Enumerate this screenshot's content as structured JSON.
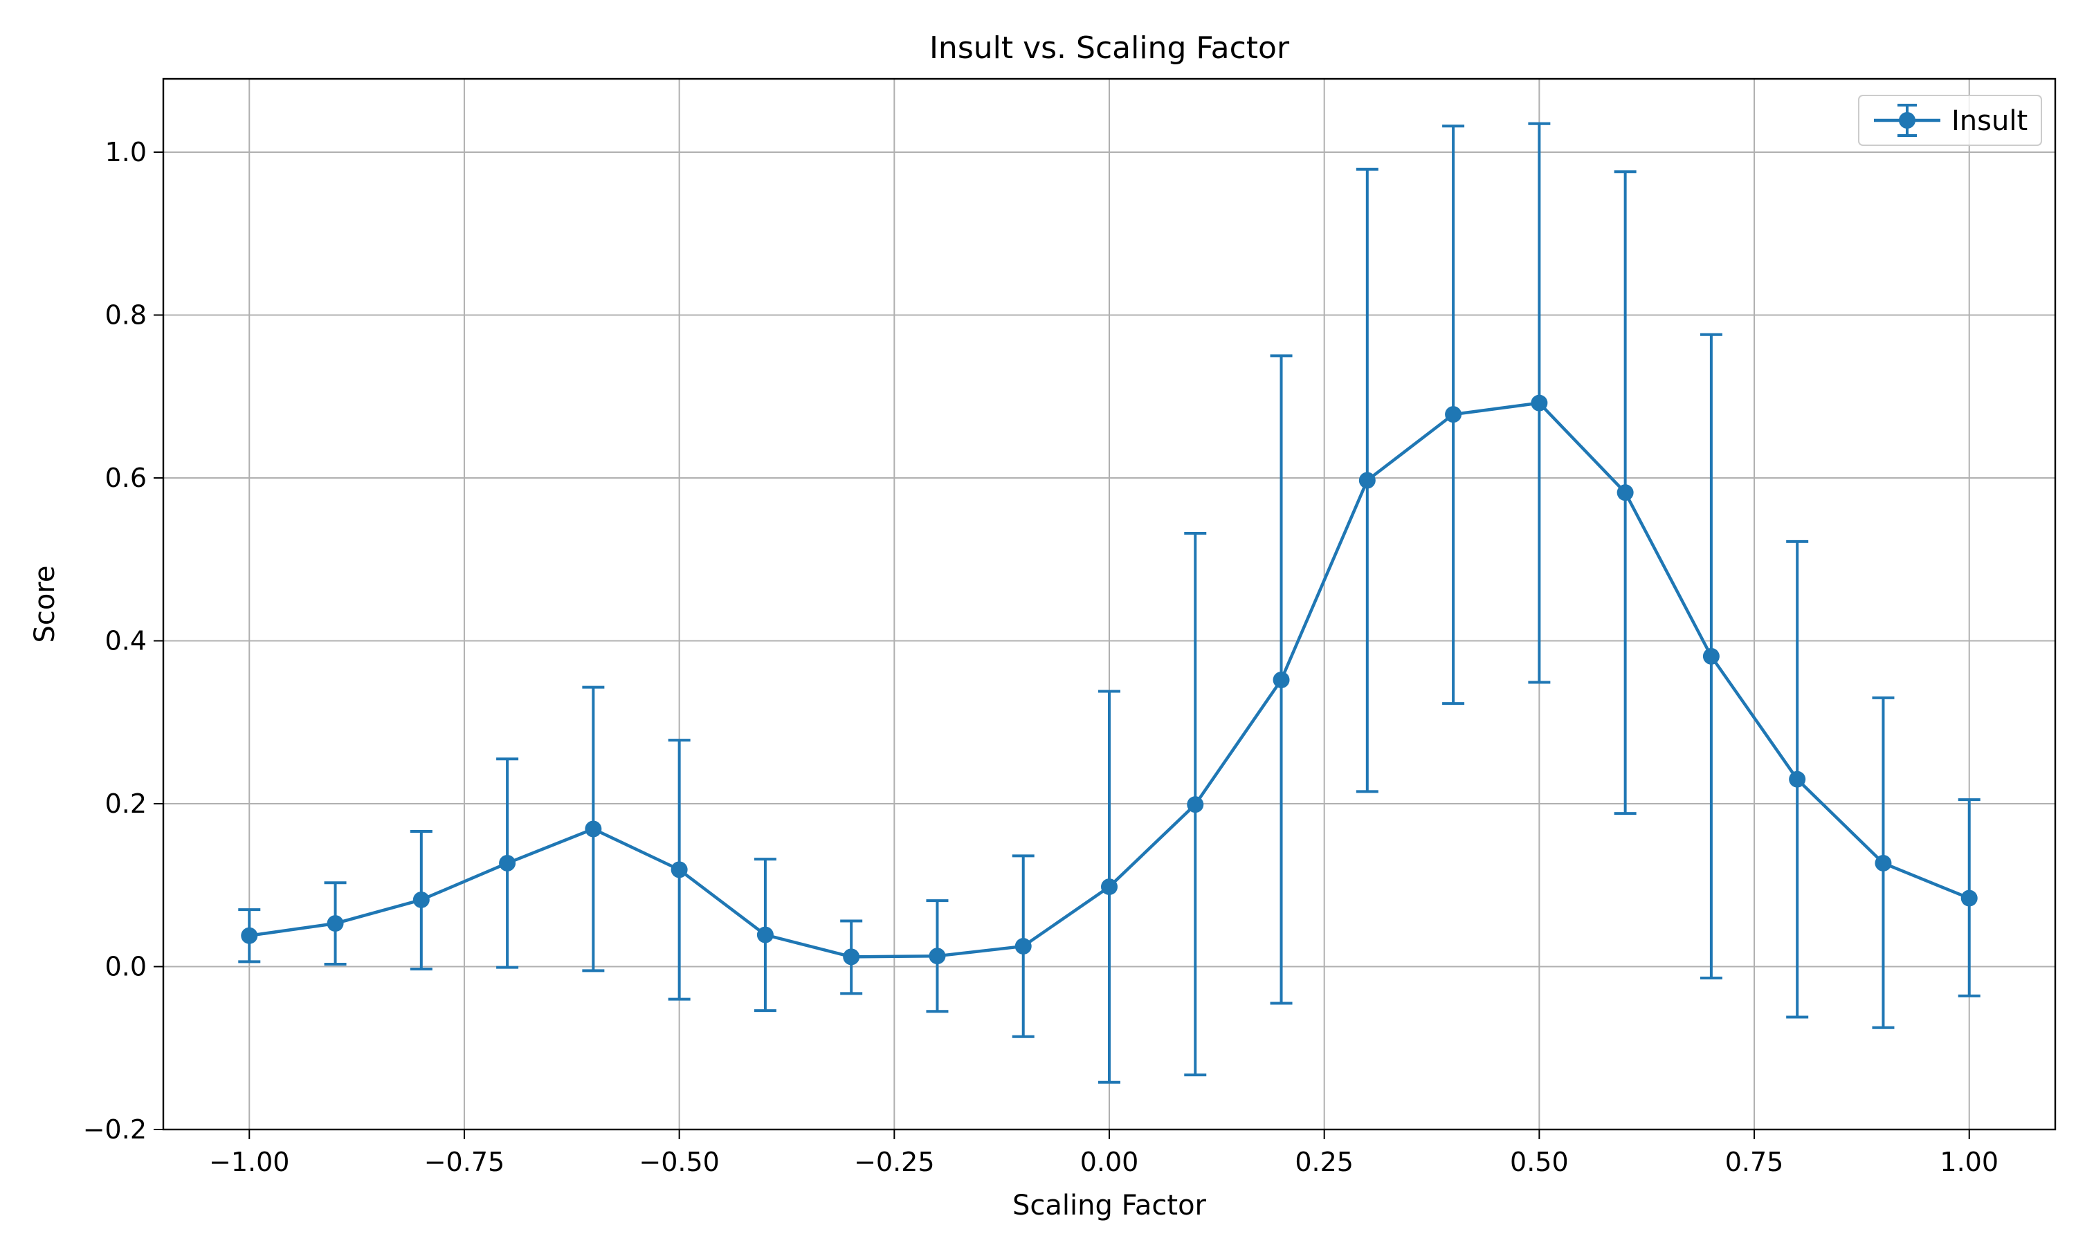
{
  "chart_data": {
    "type": "line",
    "title": "Insult vs. Scaling Factor",
    "xlabel": "Scaling Factor",
    "ylabel": "Score",
    "xlim": [
      -1.1,
      1.1
    ],
    "ylim": [
      -0.2,
      1.09
    ],
    "xticks": [
      -1.0,
      -0.75,
      -0.5,
      -0.25,
      0.0,
      0.25,
      0.5,
      0.75,
      1.0
    ],
    "xtick_labels": [
      "−1.00",
      "−0.75",
      "−0.50",
      "−0.25",
      "0.00",
      "0.25",
      "0.50",
      "0.75",
      "1.00"
    ],
    "yticks": [
      -0.2,
      0.0,
      0.2,
      0.4,
      0.6,
      0.8,
      1.0
    ],
    "ytick_labels": [
      "−0.2",
      "0.0",
      "0.2",
      "0.4",
      "0.6",
      "0.8",
      "1.0"
    ],
    "grid": true,
    "legend_position": "top-right",
    "series": [
      {
        "name": "Insult",
        "color": "#1f77b4",
        "x": [
          -1.0,
          -0.9,
          -0.8,
          -0.7,
          -0.6,
          -0.5,
          -0.4,
          -0.3,
          -0.2,
          -0.1,
          0.0,
          0.1,
          0.2,
          0.3,
          0.4,
          0.5,
          0.6,
          0.7,
          0.8,
          0.9,
          1.0
        ],
        "y": [
          0.038,
          0.053,
          0.082,
          0.127,
          0.169,
          0.119,
          0.039,
          0.012,
          0.013,
          0.025,
          0.098,
          0.199,
          0.352,
          0.597,
          0.678,
          0.692,
          0.582,
          0.381,
          0.23,
          0.127,
          0.084
        ],
        "err_low": [
          0.006,
          0.003,
          -0.003,
          -0.001,
          -0.005,
          -0.04,
          -0.054,
          -0.033,
          -0.055,
          -0.086,
          -0.142,
          -0.133,
          -0.045,
          0.215,
          0.323,
          0.349,
          0.188,
          -0.014,
          -0.062,
          -0.075,
          -0.036
        ],
        "err_high": [
          0.07,
          0.103,
          0.166,
          0.255,
          0.343,
          0.278,
          0.132,
          0.056,
          0.081,
          0.136,
          0.338,
          0.532,
          0.75,
          0.979,
          1.032,
          1.035,
          0.976,
          0.776,
          0.522,
          0.33,
          0.205
        ]
      }
    ]
  }
}
